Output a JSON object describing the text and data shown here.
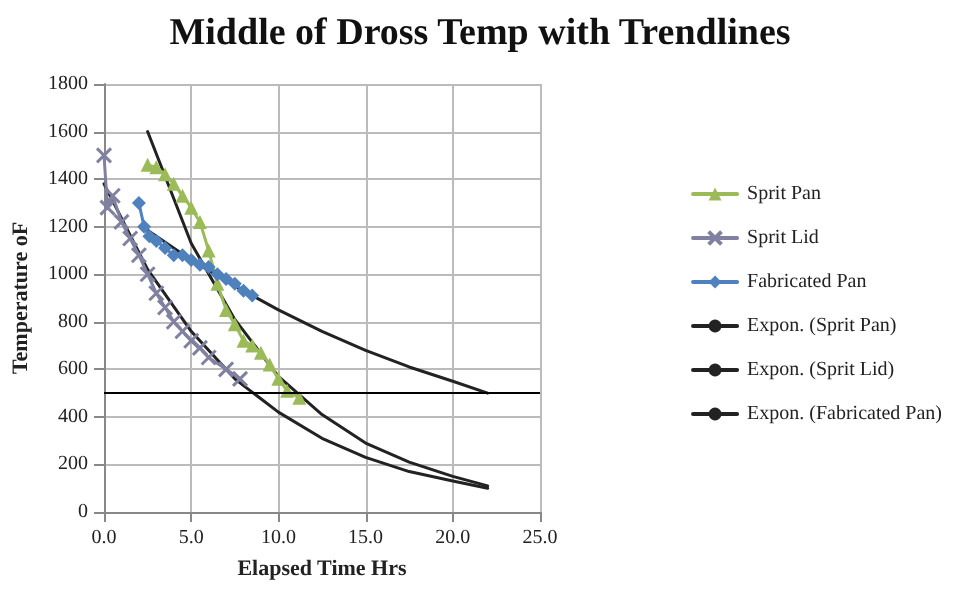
{
  "chart_data": {
    "type": "line",
    "title": "Middle of Dross Temp with Trendlines",
    "xlabel": "Elapsed Time Hrs",
    "ylabel": "Temperature oF",
    "xlim": [
      0,
      25
    ],
    "xticks": [
      {
        "value": 0,
        "label": "0.0"
      },
      {
        "value": 5,
        "label": "5.0"
      },
      {
        "value": 10,
        "label": "10.0"
      },
      {
        "value": 15,
        "label": "15.0"
      },
      {
        "value": 20,
        "label": "20.0"
      },
      {
        "value": 25,
        "label": "25.0"
      }
    ],
    "ylim": [
      0,
      1800
    ],
    "yticks": [
      0,
      200,
      400,
      600,
      800,
      1000,
      1200,
      1400,
      1600,
      1800
    ],
    "grid": true,
    "legend": "right",
    "ref_lines": [
      {
        "axis": "y",
        "value": 500,
        "color": "#000000"
      }
    ],
    "series": [
      {
        "name": "Sprit Pan",
        "color": "#9bbb59",
        "marker": "triangle",
        "x": [
          2.5,
          3,
          3.5,
          4,
          4.5,
          5,
          5.5,
          6,
          6.5,
          7,
          7.5,
          8,
          8.5,
          9,
          9.5,
          10,
          10.5,
          11.2
        ],
        "values": [
          1460,
          1450,
          1420,
          1380,
          1330,
          1280,
          1220,
          1100,
          960,
          850,
          790,
          720,
          700,
          670,
          620,
          560,
          510,
          480
        ]
      },
      {
        "name": "Sprit Lid",
        "color": "#8080a0",
        "marker": "cross",
        "x": [
          0,
          0.2,
          0.5,
          1,
          1.5,
          2,
          2.5,
          3,
          3.5,
          4,
          4.5,
          5,
          5.5,
          6,
          7,
          7.8
        ],
        "values": [
          1500,
          1280,
          1330,
          1220,
          1150,
          1080,
          1000,
          920,
          860,
          800,
          760,
          720,
          690,
          650,
          600,
          560
        ]
      },
      {
        "name": "Fabricated Pan",
        "color": "#4f81bd",
        "marker": "diamond",
        "x": [
          2,
          2.3,
          2.6,
          3,
          3.5,
          4,
          4.5,
          5,
          5.5,
          6,
          6.5,
          7,
          7.5,
          8,
          8.5
        ],
        "values": [
          1300,
          1200,
          1160,
          1140,
          1110,
          1080,
          1080,
          1060,
          1040,
          1030,
          1000,
          980,
          960,
          930,
          910
        ]
      },
      {
        "name": "Expon. (Sprit Pan)",
        "color": "#222222",
        "marker": "none",
        "x": [
          2.5,
          5,
          7.5,
          10,
          12.5,
          15,
          17.5,
          20,
          22
        ],
        "values": [
          1600,
          1130,
          810,
          570,
          410,
          290,
          210,
          150,
          110
        ]
      },
      {
        "name": "Expon. (Sprit Lid)",
        "color": "#222222",
        "marker": "none",
        "x": [
          0,
          2.5,
          5,
          7.5,
          10,
          12.5,
          15,
          17.5,
          20,
          22
        ],
        "values": [
          1380,
          1020,
          760,
          560,
          420,
          310,
          230,
          170,
          130,
          100
        ]
      },
      {
        "name": "Expon. (Fabricated Pan)",
        "color": "#222222",
        "marker": "none",
        "x": [
          2.2,
          5,
          7.5,
          10,
          12.5,
          15,
          17.5,
          20,
          22
        ],
        "values": [
          1200,
          1060,
          950,
          850,
          760,
          680,
          610,
          550,
          500
        ]
      }
    ]
  }
}
